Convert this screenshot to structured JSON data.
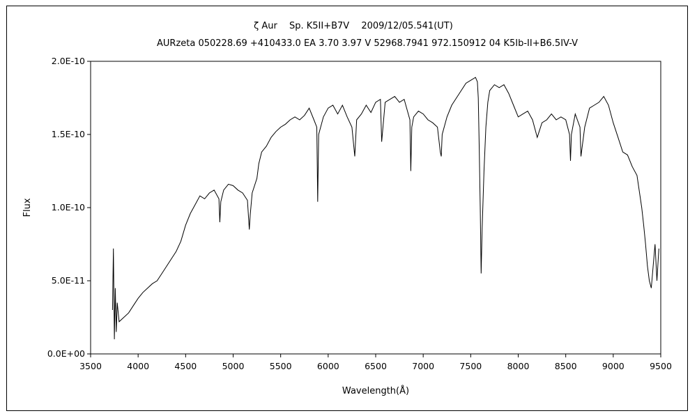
{
  "chart_data": {
    "type": "line",
    "title": "ζ Aur　 Sp. K5II+B7V　 2009/12/05.541(UT)",
    "subtitle": "AURzeta 050228.69 +410433.0 EA 3.70 3.97 V 52968.7941 972.150912 04 K5Ib-II+B6.5IV-V",
    "xlabel": "Wavelength(Å)",
    "ylabel": "Flux",
    "xlim": [
      3500,
      9500
    ],
    "ylim": [
      0,
      2e-10
    ],
    "x_ticks": [
      3500,
      4000,
      4500,
      5000,
      5500,
      6000,
      6500,
      7000,
      7500,
      8000,
      8500,
      9000,
      9500
    ],
    "x_tick_labels": [
      "3500",
      "4000",
      "4500",
      "5000",
      "5500",
      "6000",
      "6500",
      "7000",
      "7500",
      "8000",
      "8500",
      "9000",
      "9500"
    ],
    "y_ticks": [
      0,
      5e-11,
      1e-10,
      1.5e-10,
      2e-10
    ],
    "y_tick_labels": [
      "0.0E+00",
      "5.0E-11",
      "1.0E-10",
      "1.5E-10",
      "2.0E-10"
    ],
    "grid": false,
    "legend": "none",
    "line_color": "#000000",
    "series": [
      {
        "x": [
          3730,
          3740,
          3750,
          3760,
          3770,
          3780,
          3800,
          3850,
          3900,
          3950,
          4000,
          4050,
          4100,
          4150,
          4200,
          4250,
          4300,
          4350,
          4400,
          4450,
          4500,
          4550,
          4600,
          4650,
          4700,
          4750,
          4800,
          4850,
          4860,
          4870,
          4900,
          4950,
          5000,
          5050,
          5100,
          5150,
          5170,
          5180,
          5200,
          5250,
          5270,
          5300,
          5350,
          5400,
          5450,
          5500,
          5550,
          5600,
          5650,
          5700,
          5750,
          5800,
          5850,
          5880,
          5890,
          5900,
          5950,
          6000,
          6050,
          6100,
          6150,
          6200,
          6250,
          6280,
          6300,
          6350,
          6400,
          6450,
          6500,
          6550,
          6563,
          6600,
          6650,
          6700,
          6750,
          6800,
          6860,
          6870,
          6880,
          6900,
          6950,
          7000,
          7050,
          7100,
          7150,
          7180,
          7190,
          7200,
          7250,
          7300,
          7350,
          7400,
          7450,
          7500,
          7550,
          7570,
          7580,
          7590,
          7600,
          7610,
          7620,
          7640,
          7660,
          7680,
          7700,
          7750,
          7800,
          7850,
          7900,
          7950,
          8000,
          8050,
          8100,
          8150,
          8200,
          8250,
          8300,
          8350,
          8400,
          8450,
          8500,
          8540,
          8550,
          8560,
          8600,
          8650,
          8660,
          8700,
          8750,
          8800,
          8850,
          8900,
          8950,
          9000,
          9050,
          9100,
          9150,
          9200,
          9250,
          9300,
          9320,
          9340,
          9360,
          9380,
          9400,
          9420,
          9440,
          9460,
          9480
        ],
        "y": [
          3e-11,
          7.2e-11,
          1e-11,
          4.5e-11,
          1.5e-11,
          3.5e-11,
          2.2e-11,
          2.5e-11,
          2.8e-11,
          3.3e-11,
          3.8e-11,
          4.2e-11,
          4.5e-11,
          4.8e-11,
          5e-11,
          5.5e-11,
          6e-11,
          6.5e-11,
          7e-11,
          7.7e-11,
          8.8e-11,
          9.6e-11,
          1.02e-10,
          1.08e-10,
          1.06e-10,
          1.1e-10,
          1.12e-10,
          1.06e-10,
          9e-11,
          1.04e-10,
          1.12e-10,
          1.16e-10,
          1.15e-10,
          1.12e-10,
          1.1e-10,
          1.05e-10,
          8.5e-11,
          9.5e-11,
          1.1e-10,
          1.2e-10,
          1.3e-10,
          1.38e-10,
          1.42e-10,
          1.48e-10,
          1.52e-10,
          1.55e-10,
          1.57e-10,
          1.6e-10,
          1.62e-10,
          1.6e-10,
          1.63e-10,
          1.68e-10,
          1.6e-10,
          1.55e-10,
          1.04e-10,
          1.5e-10,
          1.62e-10,
          1.68e-10,
          1.7e-10,
          1.64e-10,
          1.7e-10,
          1.62e-10,
          1.55e-10,
          1.35e-10,
          1.6e-10,
          1.64e-10,
          1.7e-10,
          1.65e-10,
          1.72e-10,
          1.74e-10,
          1.45e-10,
          1.72e-10,
          1.74e-10,
          1.76e-10,
          1.72e-10,
          1.74e-10,
          1.6e-10,
          1.25e-10,
          1.55e-10,
          1.62e-10,
          1.66e-10,
          1.64e-10,
          1.6e-10,
          1.58e-10,
          1.55e-10,
          1.38e-10,
          1.35e-10,
          1.5e-10,
          1.62e-10,
          1.7e-10,
          1.75e-10,
          1.8e-10,
          1.85e-10,
          1.87e-10,
          1.89e-10,
          1.86e-10,
          1.75e-10,
          1.4e-10,
          1e-10,
          5.5e-11,
          8.5e-11,
          1.25e-10,
          1.55e-10,
          1.72e-10,
          1.8e-10,
          1.84e-10,
          1.82e-10,
          1.84e-10,
          1.78e-10,
          1.7e-10,
          1.62e-10,
          1.64e-10,
          1.66e-10,
          1.6e-10,
          1.48e-10,
          1.58e-10,
          1.6e-10,
          1.64e-10,
          1.6e-10,
          1.62e-10,
          1.6e-10,
          1.5e-10,
          1.32e-10,
          1.5e-10,
          1.64e-10,
          1.55e-10,
          1.35e-10,
          1.55e-10,
          1.68e-10,
          1.7e-10,
          1.72e-10,
          1.76e-10,
          1.7e-10,
          1.58e-10,
          1.48e-10,
          1.38e-10,
          1.36e-10,
          1.28e-10,
          1.22e-10,
          1e-10,
          8.8e-11,
          7.5e-11,
          6e-11,
          5e-11,
          4.5e-11,
          6e-11,
          7.5e-11,
          5e-11,
          7.2e-11
        ]
      }
    ]
  }
}
